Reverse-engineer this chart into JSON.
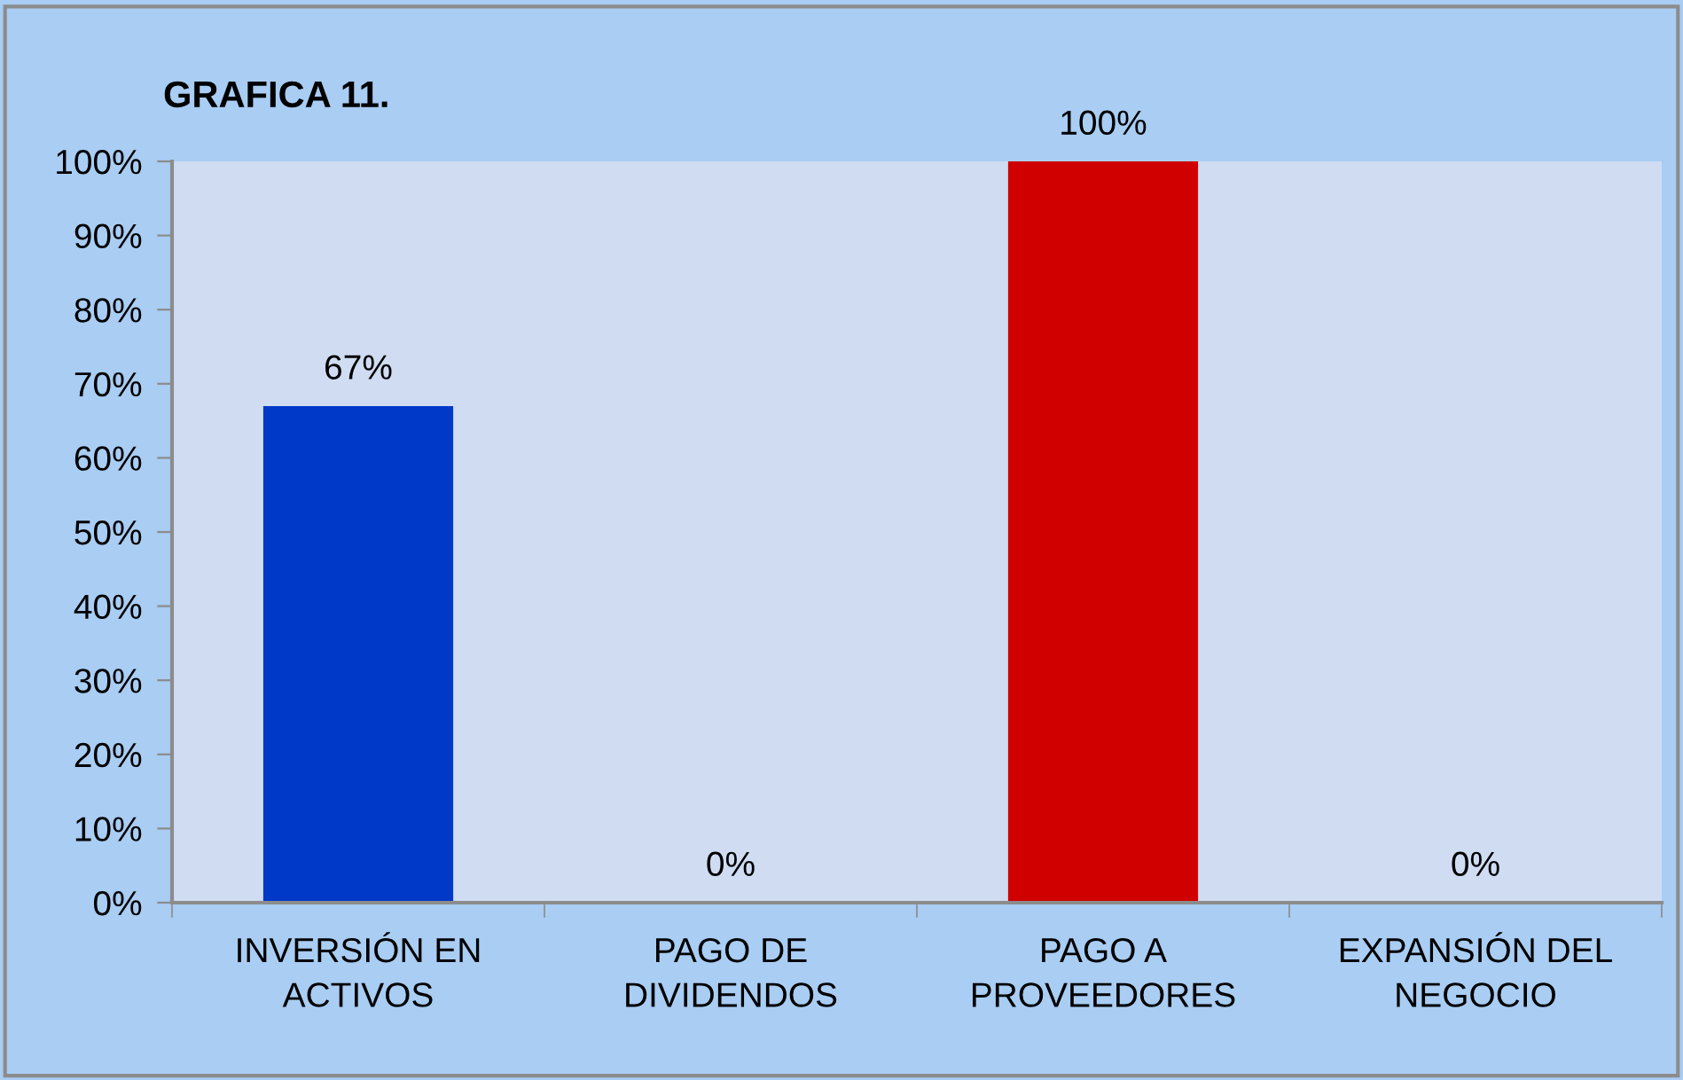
{
  "chart_data": {
    "type": "bar",
    "title": "GRAFICA 11.",
    "categories": [
      "INVERSIÓN EN\nACTIVOS",
      "PAGO DE\nDIVIDENDOS",
      "PAGO A\nPROVEEDORES",
      "EXPANSIÓN DEL\nNEGOCIO"
    ],
    "values": [
      67,
      0,
      100,
      0
    ],
    "colors": [
      "#0038c8",
      "#1040c0",
      "#d00000",
      "#d00000"
    ],
    "value_labels": [
      "67%",
      "0%",
      "100%",
      "0%"
    ],
    "ylim": [
      0,
      100
    ],
    "yticks": [
      {
        "value": 0,
        "label": "0%"
      },
      {
        "value": 10,
        "label": "10%"
      },
      {
        "value": 20,
        "label": "20%"
      },
      {
        "value": 30,
        "label": "30%"
      },
      {
        "value": 40,
        "label": "40%"
      },
      {
        "value": 50,
        "label": "50%"
      },
      {
        "value": 60,
        "label": "60%"
      },
      {
        "value": 70,
        "label": "70%"
      },
      {
        "value": 80,
        "label": "80%"
      },
      {
        "value": 90,
        "label": "90%"
      },
      {
        "value": 100,
        "label": "100%"
      }
    ],
    "grid": false
  }
}
